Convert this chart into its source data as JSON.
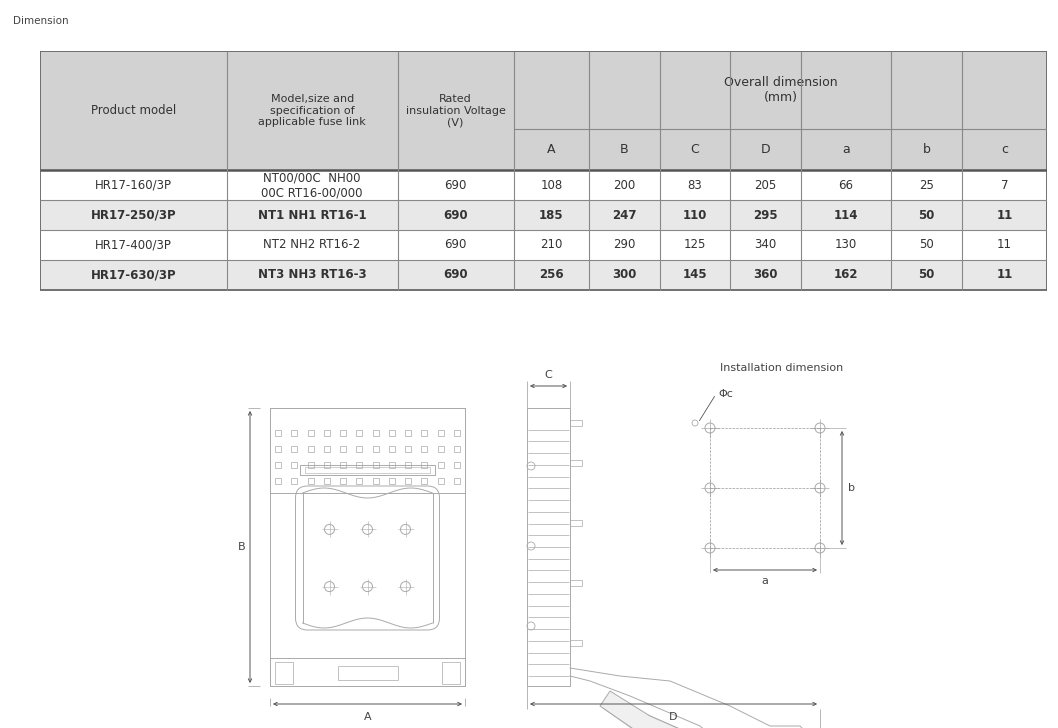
{
  "title": "Dimension",
  "rows": [
    [
      "HR17-160/3P",
      "NT00/00C  NH00\n00C RT16-00/000",
      "690",
      "108",
      "200",
      "83",
      "205",
      "66",
      "25",
      "7"
    ],
    [
      "HR17-250/3P",
      "NT1 NH1 RT16-1",
      "690",
      "185",
      "247",
      "110",
      "295",
      "114",
      "50",
      "11"
    ],
    [
      "HR17-400/3P",
      "NT2 NH2 RT16-2",
      "690",
      "210",
      "290",
      "125",
      "340",
      "130",
      "50",
      "11"
    ],
    [
      "HR17-630/3P",
      "NT3 NH3 RT16-3",
      "690",
      "256",
      "300",
      "145",
      "360",
      "162",
      "50",
      "11"
    ]
  ],
  "shaded_rows": [
    1,
    3
  ],
  "header_bg": "#d2d2d2",
  "shaded_bg": "#e8e8e8",
  "white_bg": "#ffffff",
  "text_color": "#333333",
  "line_color": "#aaaaaa",
  "dim_line_color": "#555555",
  "installation_dim_label": "Installation dimension",
  "phi_c_label": "Φc"
}
